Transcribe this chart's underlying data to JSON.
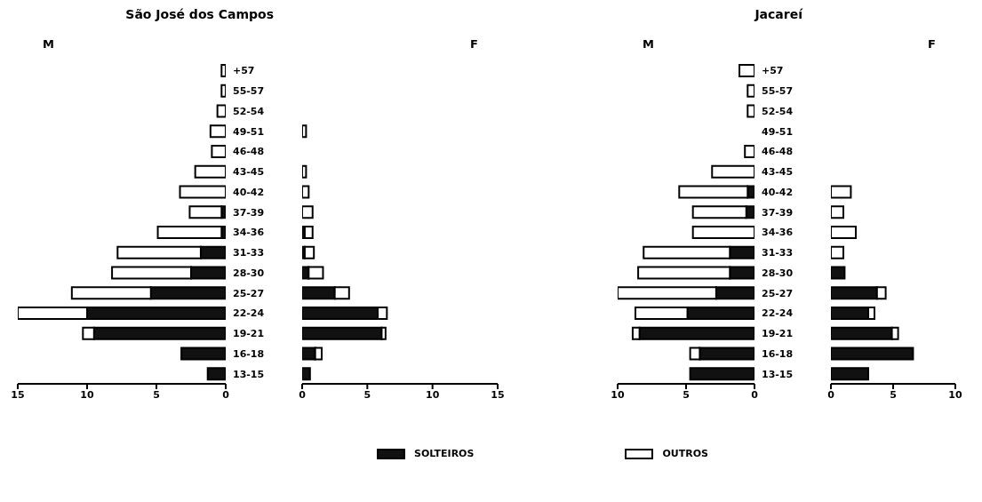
{
  "chart_data": [
    {
      "type": "bar",
      "title": "São José dos Campos",
      "subtitle": "M",
      "orientation": "horizontal",
      "stacked": true,
      "legend": "bottom",
      "categories": [
        "+57",
        "55-57",
        "52-54",
        "49-51",
        "46-48",
        "43-45",
        "40-42",
        "37-39",
        "34-36",
        "31-33",
        "28-30",
        "25-27",
        "22-24",
        "19-21",
        "16-18",
        "13-15"
      ],
      "xlim": [
        15,
        0
      ],
      "xticks": [
        15,
        10,
        5,
        0
      ],
      "series": [
        {
          "name": "SOLTEIROS",
          "color": "#111111",
          "values": [
            0,
            0,
            0,
            0,
            0,
            0,
            0,
            0.3,
            0.3,
            1.8,
            2.5,
            5.4,
            10.0,
            9.5,
            3.2,
            1.3
          ]
        },
        {
          "name": "OUTROS",
          "color": "#ffffff",
          "values": [
            0.3,
            0.3,
            0.6,
            1.1,
            1.0,
            2.2,
            3.3,
            2.3,
            4.6,
            6.0,
            5.7,
            5.7,
            5.0,
            0.8,
            0,
            0
          ]
        }
      ]
    },
    {
      "type": "bar",
      "subtitle": "F",
      "orientation": "horizontal",
      "stacked": true,
      "tick_labels": "x",
      "xlim": [
        0,
        15
      ],
      "xticks": [
        0,
        5,
        10,
        15
      ],
      "series": [
        {
          "color": "#111111",
          "values": [
            0,
            0,
            0,
            0,
            0,
            0,
            0,
            0,
            0.2,
            0.2,
            0.5,
            2.5,
            5.8,
            6.1,
            1.0,
            0.6
          ]
        },
        {
          "color": "#ffffff",
          "values": [
            0,
            0,
            0,
            0.3,
            0,
            0.3,
            0.5,
            0.8,
            0.6,
            0.7,
            1.1,
            1.1,
            0.7,
            0.3,
            0.5,
            0
          ]
        }
      ]
    },
    {
      "type": "bar",
      "title": "Jacareí",
      "subtitle": "M",
      "orientation": "horizontal",
      "stacked": true,
      "categories": [
        "+57",
        "55-57",
        "52-54",
        "49-51",
        "46-48",
        "43-45",
        "40-42",
        "37-39",
        "34-36",
        "31-33",
        "28-30",
        "25-27",
        "22-24",
        "19-21",
        "16-18",
        "13-15"
      ],
      "xlim": [
        10,
        0
      ],
      "xticks": [
        10,
        5,
        0
      ],
      "series": [
        {
          "color": "#111111",
          "values": [
            0,
            0,
            0,
            0,
            0,
            0,
            0.5,
            0.6,
            0,
            1.8,
            1.8,
            2.8,
            4.9,
            8.4,
            4.0,
            4.7
          ]
        },
        {
          "color": "#ffffff",
          "values": [
            1.1,
            0.5,
            0.5,
            0,
            0.7,
            3.1,
            5.0,
            3.9,
            4.5,
            6.3,
            6.7,
            7.2,
            3.8,
            0.5,
            0.7,
            0
          ]
        }
      ]
    },
    {
      "type": "bar",
      "subtitle": "F",
      "orientation": "horizontal",
      "stacked": true,
      "tick_labels": "x",
      "xlim": [
        0,
        10
      ],
      "xticks": [
        0,
        5,
        10
      ],
      "series": [
        {
          "color": "#111111",
          "values": [
            0,
            0,
            0,
            0,
            0,
            0,
            0,
            0,
            0,
            0,
            1.1,
            3.7,
            3.0,
            4.9,
            6.6,
            3.0
          ]
        },
        {
          "color": "#ffffff",
          "values": [
            0,
            0,
            0,
            0,
            0,
            0,
            1.6,
            1.0,
            2.0,
            1.0,
            0,
            0.7,
            0.5,
            0.5,
            0,
            0
          ]
        }
      ]
    }
  ]
}
